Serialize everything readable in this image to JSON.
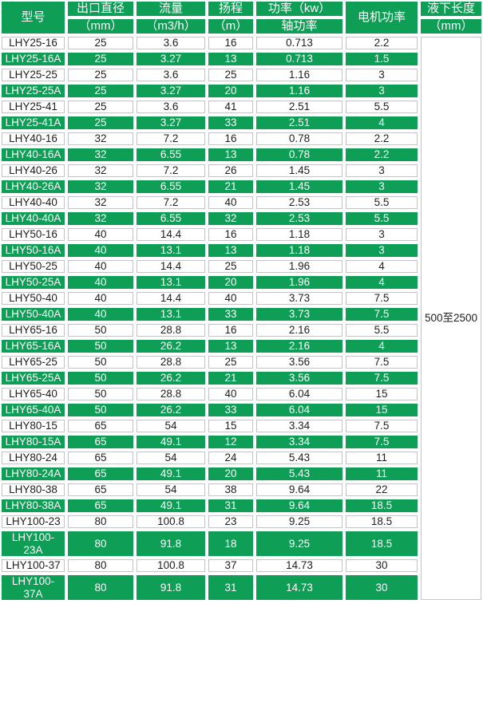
{
  "colors": {
    "green": "#0f9e55",
    "grid_gray": "#c4c4c4",
    "text_dark": "#1f1f1f",
    "text_light": "#ffffff"
  },
  "table": {
    "header": {
      "model": "型号",
      "diameter_line1": "出口直径",
      "diameter_line2": "（mm）",
      "flow_line1": "流量",
      "flow_line2": "（m3/h）",
      "head_line1": "扬程",
      "head_line2": "（m）",
      "power_line1": "功率（kw）",
      "power_line2": "轴功率",
      "motor": "电机功率",
      "depth_line1": "液下长度",
      "depth_line2": "（mm）"
    },
    "liquid_depth_value": "500至2500",
    "rows": [
      {
        "model": "LHY25-16",
        "diameter": "25",
        "flow": "3.6",
        "head": "16",
        "shaft_power": "0.713",
        "motor_power": "2.2",
        "highlighted": false,
        "tall": false
      },
      {
        "model": "LHY25-16A",
        "diameter": "25",
        "flow": "3.27",
        "head": "13",
        "shaft_power": "0.713",
        "motor_power": "1.5",
        "highlighted": true,
        "tall": false
      },
      {
        "model": "LHY25-25",
        "diameter": "25",
        "flow": "3.6",
        "head": "25",
        "shaft_power": "1.16",
        "motor_power": "3",
        "highlighted": false,
        "tall": false
      },
      {
        "model": "LHY25-25A",
        "diameter": "25",
        "flow": "3.27",
        "head": "20",
        "shaft_power": "1.16",
        "motor_power": "3",
        "highlighted": true,
        "tall": false
      },
      {
        "model": "LHY25-41",
        "diameter": "25",
        "flow": "3.6",
        "head": "41",
        "shaft_power": "2.51",
        "motor_power": "5.5",
        "highlighted": false,
        "tall": false
      },
      {
        "model": "LHY25-41A",
        "diameter": "25",
        "flow": "3.27",
        "head": "33",
        "shaft_power": "2.51",
        "motor_power": "4",
        "highlighted": true,
        "tall": false
      },
      {
        "model": "LHY40-16",
        "diameter": "32",
        "flow": "7.2",
        "head": "16",
        "shaft_power": "0.78",
        "motor_power": "2.2",
        "highlighted": false,
        "tall": false
      },
      {
        "model": "LHY40-16A",
        "diameter": "32",
        "flow": "6.55",
        "head": "13",
        "shaft_power": "0.78",
        "motor_power": "2.2",
        "highlighted": true,
        "tall": false
      },
      {
        "model": "LHY40-26",
        "diameter": "32",
        "flow": "7.2",
        "head": "26",
        "shaft_power": "1.45",
        "motor_power": "3",
        "highlighted": false,
        "tall": false
      },
      {
        "model": "LHY40-26A",
        "diameter": "32",
        "flow": "6.55",
        "head": "21",
        "shaft_power": "1.45",
        "motor_power": "3",
        "highlighted": true,
        "tall": false
      },
      {
        "model": "LHY40-40",
        "diameter": "32",
        "flow": "7.2",
        "head": "40",
        "shaft_power": "2.53",
        "motor_power": "5.5",
        "highlighted": false,
        "tall": false
      },
      {
        "model": "LHY40-40A",
        "diameter": "32",
        "flow": "6.55",
        "head": "32",
        "shaft_power": "2.53",
        "motor_power": "5.5",
        "highlighted": true,
        "tall": false
      },
      {
        "model": "LHY50-16",
        "diameter": "40",
        "flow": "14.4",
        "head": "16",
        "shaft_power": "1.18",
        "motor_power": "3",
        "highlighted": false,
        "tall": false
      },
      {
        "model": "LHY50-16A",
        "diameter": "40",
        "flow": "13.1",
        "head": "13",
        "shaft_power": "1.18",
        "motor_power": "3",
        "highlighted": true,
        "tall": false
      },
      {
        "model": "LHY50-25",
        "diameter": "40",
        "flow": "14.4",
        "head": "25",
        "shaft_power": "1.96",
        "motor_power": "4",
        "highlighted": false,
        "tall": false
      },
      {
        "model": "LHY50-25A",
        "diameter": "40",
        "flow": "13.1",
        "head": "20",
        "shaft_power": "1.96",
        "motor_power": "4",
        "highlighted": true,
        "tall": false
      },
      {
        "model": "LHY50-40",
        "diameter": "40",
        "flow": "14.4",
        "head": "40",
        "shaft_power": "3.73",
        "motor_power": "7.5",
        "highlighted": false,
        "tall": false
      },
      {
        "model": "LHY50-40A",
        "diameter": "40",
        "flow": "13.1",
        "head": "33",
        "shaft_power": "3.73",
        "motor_power": "7.5",
        "highlighted": true,
        "tall": false
      },
      {
        "model": "LHY65-16",
        "diameter": "50",
        "flow": "28.8",
        "head": "16",
        "shaft_power": "2.16",
        "motor_power": "5.5",
        "highlighted": false,
        "tall": false
      },
      {
        "model": "LHY65-16A",
        "diameter": "50",
        "flow": "26.2",
        "head": "13",
        "shaft_power": "2.16",
        "motor_power": "4",
        "highlighted": true,
        "tall": false
      },
      {
        "model": "LHY65-25",
        "diameter": "50",
        "flow": "28.8",
        "head": "25",
        "shaft_power": "3.56",
        "motor_power": "7.5",
        "highlighted": false,
        "tall": false
      },
      {
        "model": "LHY65-25A",
        "diameter": "50",
        "flow": "26.2",
        "head": "21",
        "shaft_power": "3.56",
        "motor_power": "7.5",
        "highlighted": true,
        "tall": false
      },
      {
        "model": "LHY65-40",
        "diameter": "50",
        "flow": "28.8",
        "head": "40",
        "shaft_power": "6.04",
        "motor_power": "15",
        "highlighted": false,
        "tall": false
      },
      {
        "model": "LHY65-40A",
        "diameter": "50",
        "flow": "26.2",
        "head": "33",
        "shaft_power": "6.04",
        "motor_power": "15",
        "highlighted": true,
        "tall": false
      },
      {
        "model": "LHY80-15",
        "diameter": "65",
        "flow": "54",
        "head": "15",
        "shaft_power": "3.34",
        "motor_power": "7.5",
        "highlighted": false,
        "tall": false
      },
      {
        "model": "LHY80-15A",
        "diameter": "65",
        "flow": "49.1",
        "head": "12",
        "shaft_power": "3.34",
        "motor_power": "7.5",
        "highlighted": true,
        "tall": false
      },
      {
        "model": "LHY80-24",
        "diameter": "65",
        "flow": "54",
        "head": "24",
        "shaft_power": "5.43",
        "motor_power": "11",
        "highlighted": false,
        "tall": false
      },
      {
        "model": "LHY80-24A",
        "diameter": "65",
        "flow": "49.1",
        "head": "20",
        "shaft_power": "5.43",
        "motor_power": "11",
        "highlighted": true,
        "tall": false
      },
      {
        "model": "LHY80-38",
        "diameter": "65",
        "flow": "54",
        "head": "38",
        "shaft_power": "9.64",
        "motor_power": "22",
        "highlighted": false,
        "tall": false
      },
      {
        "model": "LHY80-38A",
        "diameter": "65",
        "flow": "49.1",
        "head": "31",
        "shaft_power": "9.64",
        "motor_power": "18.5",
        "highlighted": true,
        "tall": false
      },
      {
        "model": "LHY100-23",
        "diameter": "80",
        "flow": "100.8",
        "head": "23",
        "shaft_power": "9.25",
        "motor_power": "18.5",
        "highlighted": false,
        "tall": false
      },
      {
        "model": "LHY100-23A",
        "diameter": "80",
        "flow": "91.8",
        "head": "18",
        "shaft_power": "9.25",
        "motor_power": "18.5",
        "highlighted": true,
        "tall": true
      },
      {
        "model": "LHY100-37",
        "diameter": "80",
        "flow": "100.8",
        "head": "37",
        "shaft_power": "14.73",
        "motor_power": "30",
        "highlighted": false,
        "tall": false
      },
      {
        "model": "LHY100-37A",
        "diameter": "80",
        "flow": "91.8",
        "head": "31",
        "shaft_power": "14.73",
        "motor_power": "30",
        "highlighted": true,
        "tall": true
      }
    ]
  }
}
